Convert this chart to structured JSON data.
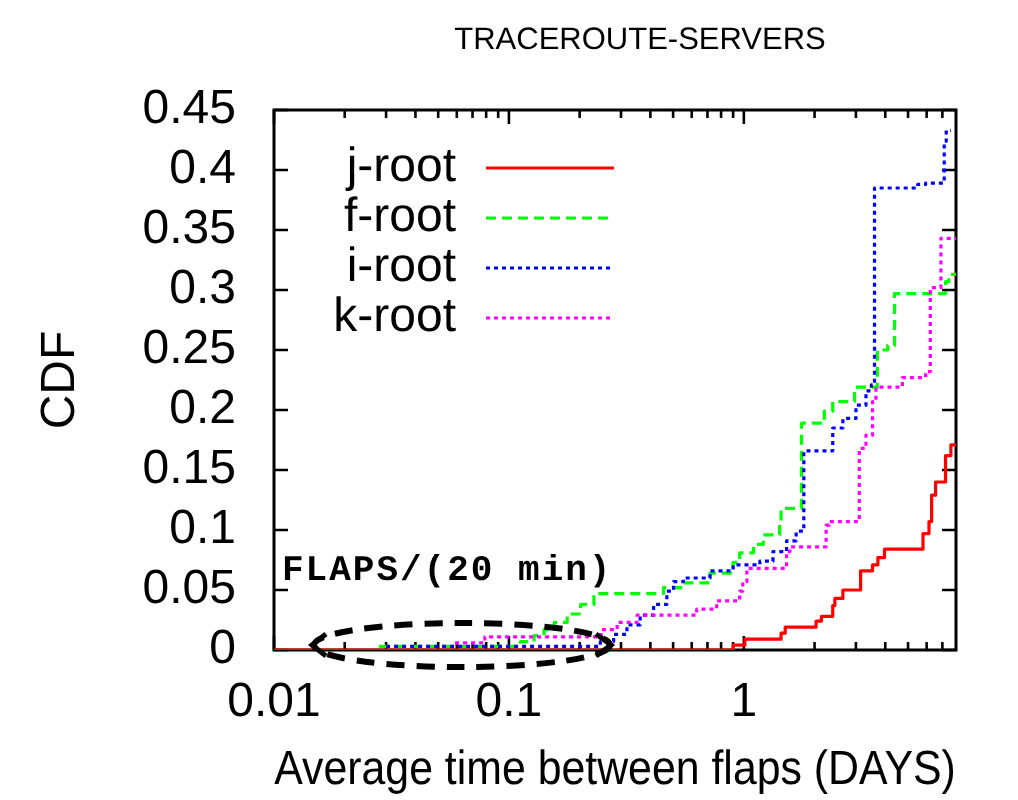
{
  "chart_data": {
    "type": "step",
    "title": "TRACEROUTE-SERVERS",
    "xlabel": "Average time between flaps (DAYS)",
    "ylabel": "CDF",
    "annotations": [
      "FLAPS/(20 min)"
    ],
    "log": "x",
    "grid": false,
    "legend": "top left",
    "marker": "none",
    "xlim": [
      0.01,
      8
    ],
    "xticks": [
      0.01,
      {
        "value": 0.02,
        "label": null
      },
      {
        "value": 0.03,
        "label": null
      },
      {
        "value": 0.04,
        "label": null
      },
      {
        "value": 0.05,
        "label": null
      },
      {
        "value": 0.06,
        "label": null
      },
      {
        "value": 0.07,
        "label": null
      },
      {
        "value": 0.08,
        "label": null
      },
      {
        "value": 0.09,
        "label": null
      },
      0.1,
      {
        "value": 0.2,
        "label": null
      },
      {
        "value": 0.3,
        "label": null
      },
      {
        "value": 0.4,
        "label": null
      },
      {
        "value": 0.5,
        "label": null
      },
      {
        "value": 0.6,
        "label": null
      },
      {
        "value": 0.7,
        "label": null
      },
      {
        "value": 0.8,
        "label": null
      },
      {
        "value": 0.9,
        "label": null
      },
      1,
      {
        "value": 2,
        "label": null
      },
      {
        "value": 3,
        "label": null
      },
      {
        "value": 4,
        "label": null
      },
      {
        "value": 5,
        "label": null
      },
      {
        "value": 6,
        "label": null
      },
      {
        "value": 7,
        "label": null
      }
    ],
    "ylim": [
      0,
      0.45
    ],
    "yticks": [
      0,
      0.05,
      0.1,
      0.15,
      0.2,
      0.25,
      0.3,
      0.35,
      0.4,
      0.45
    ],
    "series": [
      {
        "name": "j-root",
        "color": "#ff0000",
        "line_style": "solid",
        "x": [
          0.01,
          0.9,
          1.01,
          1.44,
          1.5,
          2.03,
          2.14,
          2.39,
          2.44,
          2.64,
          3.14,
          3.53,
          3.72,
          3.97,
          5.79,
          6.14,
          6.3,
          6.55,
          7.22,
          7.61,
          8
        ],
        "values": [
          0,
          0.004,
          0.009,
          0.014,
          0.019,
          0.024,
          0.028,
          0.037,
          0.043,
          0.05,
          0.066,
          0.071,
          0.077,
          0.084,
          0.097,
          0.107,
          0.129,
          0.14,
          0.162,
          0.171,
          0.171
        ]
      },
      {
        "name": "f-root",
        "color": "#00ff00",
        "line_style": "dashed",
        "x": [
          0.028,
          0.112,
          0.128,
          0.141,
          0.156,
          0.177,
          0.202,
          0.23,
          0.455,
          0.553,
          0.718,
          0.9,
          0.96,
          1.1,
          1.21,
          1.42,
          1.44,
          1.76,
          2.2,
          2.39,
          2.96,
          3.7,
          4.1,
          4.38,
          7.22,
          7.46,
          8
        ],
        "values": [
          0.003,
          0.007,
          0.012,
          0.017,
          0.023,
          0.03,
          0.038,
          0.047,
          0.052,
          0.056,
          0.064,
          0.073,
          0.081,
          0.088,
          0.096,
          0.107,
          0.118,
          0.189,
          0.199,
          0.207,
          0.219,
          0.25,
          0.254,
          0.297,
          0.307,
          0.313,
          0.313
        ]
      },
      {
        "name": "i-root",
        "color": "#0000ff",
        "line_style": "dotted",
        "x": [
          0.03,
          0.245,
          0.279,
          0.318,
          0.362,
          0.413,
          0.47,
          0.502,
          0.553,
          0.718,
          0.9,
          1.17,
          1.33,
          1.52,
          1.67,
          1.8,
          2.39,
          2.64,
          3.0,
          3.31,
          3.49,
          3.6,
          5.5,
          5.94,
          7.13,
          7.27,
          7.6
        ],
        "values": [
          0.003,
          0.007,
          0.013,
          0.021,
          0.029,
          0.038,
          0.049,
          0.057,
          0.06,
          0.066,
          0.071,
          0.074,
          0.082,
          0.091,
          0.099,
          0.166,
          0.185,
          0.193,
          0.204,
          0.216,
          0.221,
          0.385,
          0.388,
          0.389,
          0.424,
          0.433,
          0.433
        ]
      },
      {
        "name": "k-root",
        "color": "#ff00ff",
        "line_style": "dotted",
        "x": [
          0.059,
          0.079,
          0.247,
          0.289,
          0.351,
          0.63,
          0.766,
          0.96,
          0.99,
          1.03,
          1.52,
          1.57,
          2.24,
          2.31,
          3.1,
          3.31,
          3.53,
          3.65,
          4.73,
          5.94,
          6.22,
          6.9,
          8
        ],
        "values": [
          0.006,
          0.011,
          0.017,
          0.023,
          0.029,
          0.034,
          0.041,
          0.049,
          0.057,
          0.068,
          0.082,
          0.086,
          0.104,
          0.107,
          0.168,
          0.179,
          0.207,
          0.219,
          0.227,
          0.232,
          0.302,
          0.343,
          0.343
        ]
      }
    ]
  }
}
